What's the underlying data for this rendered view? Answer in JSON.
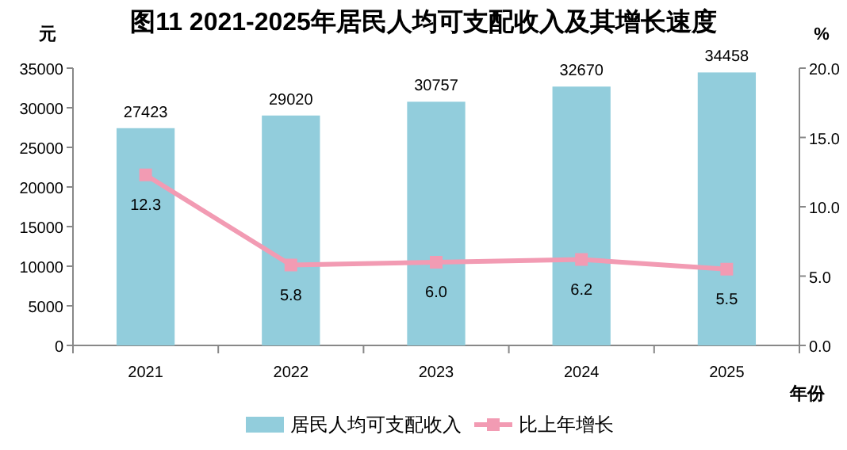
{
  "chart_data": {
    "type": "bar",
    "title": "图11   2021-2025年居民人均可支配收入及其增长速度",
    "categories": [
      "2021",
      "2022",
      "2023",
      "2024",
      "2025"
    ],
    "series": [
      {
        "name": "居民人均可支配收入",
        "color": "#92cddc",
        "values": [
          27423,
          29020,
          30757,
          32670,
          34458
        ]
      },
      {
        "name": "比上年增长",
        "type": "line",
        "axis": "y2",
        "color": "#f29bb3",
        "marker": "square",
        "values": [
          12.3,
          5.8,
          6.0,
          6.2,
          5.5
        ],
        "value_labels": [
          "12.3",
          "5.8",
          "6.0",
          "6.2",
          "5.5"
        ]
      }
    ],
    "data_labels": true,
    "ylabel": "元",
    "y2label": "%",
    "xlabel": "年份",
    "ylim": [
      0,
      35000
    ],
    "yticks": [
      0,
      5000,
      10000,
      15000,
      20000,
      25000,
      30000,
      35000
    ],
    "y2lim": [
      0,
      20
    ],
    "y2ticks": [
      {
        "value": 0,
        "label": "0.0"
      },
      {
        "value": 5,
        "label": "5.0"
      },
      {
        "value": 10,
        "label": "10.0"
      },
      {
        "value": 15,
        "label": "15.0"
      },
      {
        "value": 20,
        "label": "20.0"
      }
    ],
    "legend": "bottom"
  }
}
